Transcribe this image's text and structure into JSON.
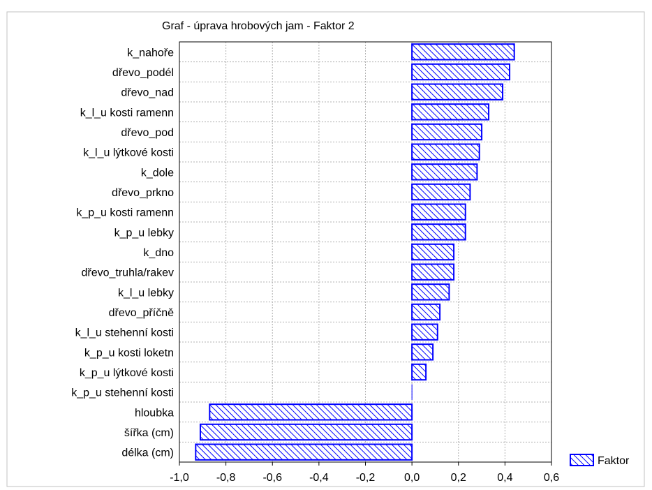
{
  "chart_data": {
    "type": "bar",
    "orientation": "horizontal",
    "title": "Graf - úprava hrobových jam - Faktor 2",
    "categories": [
      "k_nahoře",
      "dřevo_podél",
      "dřevo_nad",
      "k_l_u kosti ramenn",
      "dřevo_pod",
      "k_l_u lýtkové kosti",
      "k_dole",
      "dřevo_prkno",
      "k_p_u kosti ramenn",
      "k_p_u lebky",
      "k_dno",
      "dřevo_truhla/rakev",
      "k_l_u lebky",
      "dřevo_příčně",
      "k_l_u stehenní kosti",
      "k_p_u kosti loketn",
      "k_p_u lýtkové kosti",
      "k_p_u stehenní kosti",
      "hloubka",
      "šířka (cm)",
      "délka (cm)"
    ],
    "series": [
      {
        "name": "Faktor",
        "values": [
          0.44,
          0.42,
          0.39,
          0.33,
          0.3,
          0.29,
          0.28,
          0.25,
          0.23,
          0.23,
          0.18,
          0.18,
          0.16,
          0.12,
          0.11,
          0.09,
          0.06,
          0.0,
          -0.87,
          -0.91,
          -0.93
        ]
      }
    ],
    "xlim": [
      -1.0,
      0.6
    ],
    "xticks": [
      "-1,0",
      "-0,8",
      "-0,6",
      "-0,4",
      "-0,2",
      "0,0",
      "0,2",
      "0,4",
      "0,6"
    ],
    "xtick_values": [
      -1.0,
      -0.8,
      -0.6,
      -0.4,
      -0.2,
      0.0,
      0.2,
      0.4,
      0.6
    ],
    "grid": true,
    "legend_position": "bottom-right",
    "colors": {
      "bar_stroke": "#0000ff",
      "bar_hatch": "#0000ff",
      "bar_fill": "#ffffff",
      "grid": "#b0b0b0",
      "border": "#000000",
      "outer_frame": "#c0c0c0"
    }
  }
}
